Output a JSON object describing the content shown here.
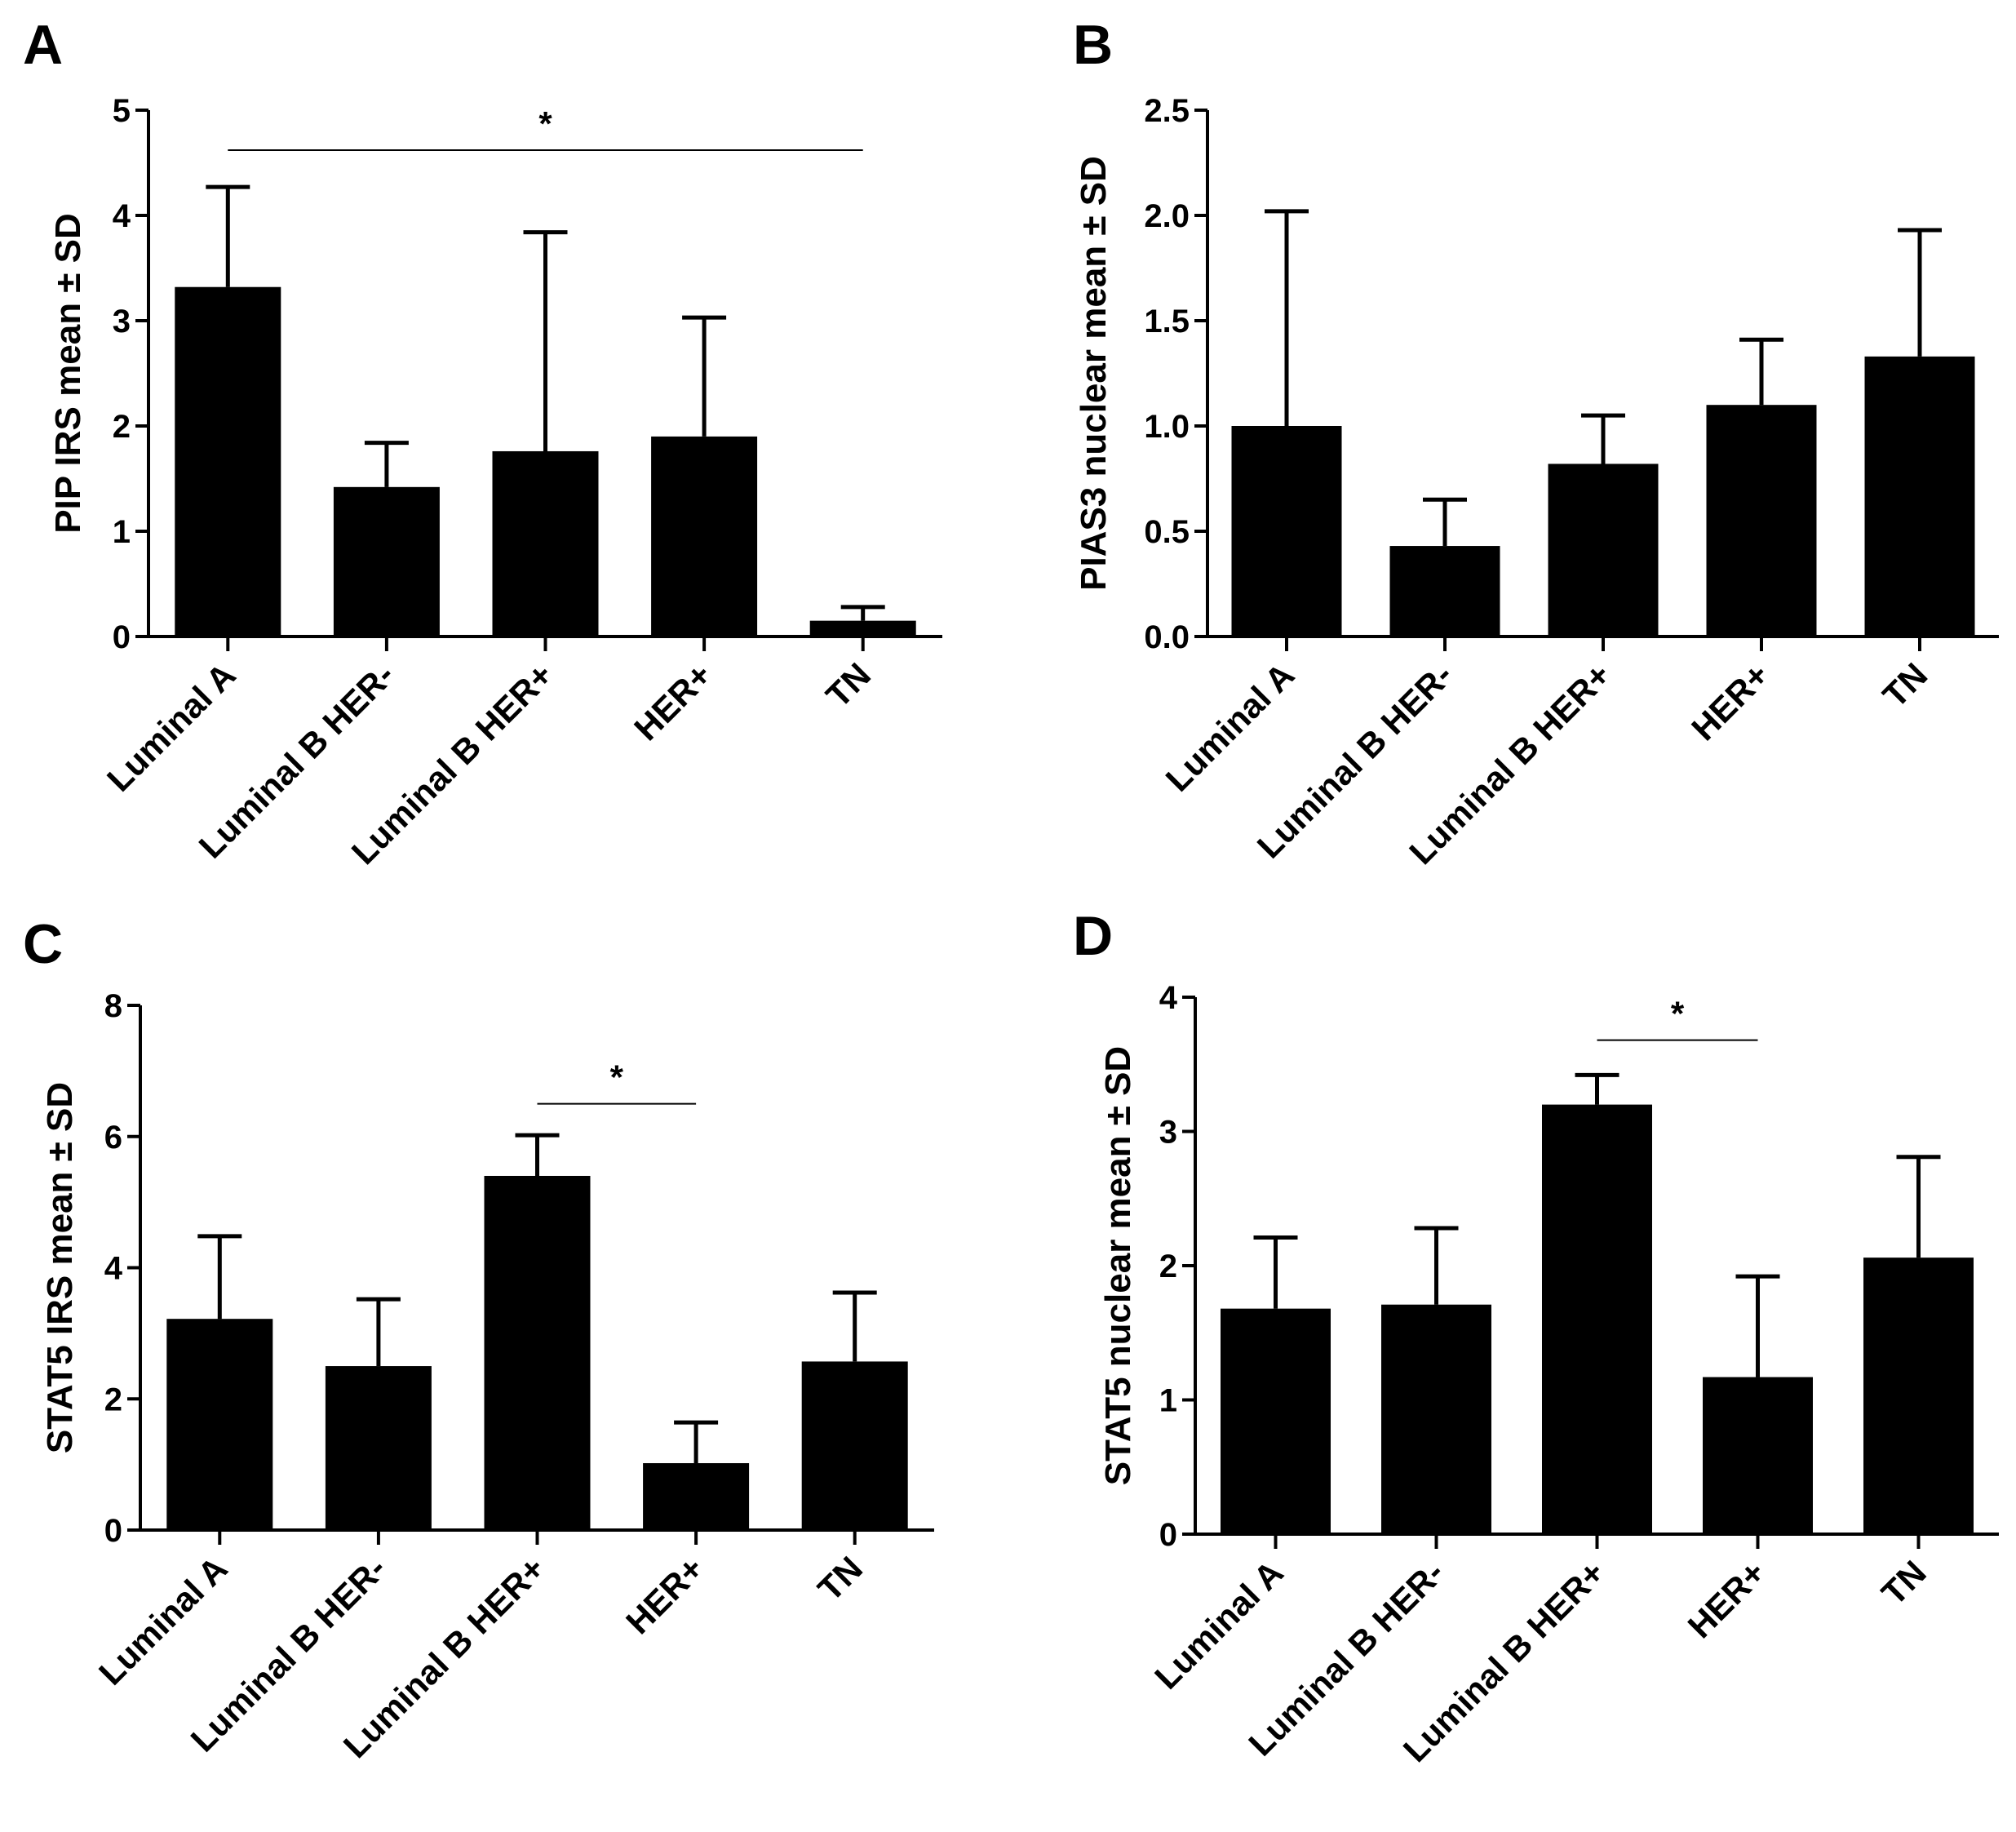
{
  "chart_data": [
    {
      "type": "bar",
      "panel": "A",
      "ylabel": "PIP IRS mean ± SD",
      "categories": [
        "Luminal A",
        "Luminal B HER-",
        "Luminal B HER+",
        "HER+",
        "TN"
      ],
      "values": [
        3.32,
        1.42,
        1.76,
        1.9,
        0.15
      ],
      "errors": [
        0.95,
        0.42,
        2.08,
        1.13,
        0.13
      ],
      "ylim": [
        0,
        5
      ],
      "yticks": [
        0,
        1,
        2,
        3,
        4,
        5
      ],
      "ytick_labels": [
        "0",
        "1",
        "2",
        "3",
        "4",
        "5"
      ],
      "significance": [
        {
          "from": 0,
          "to": 4,
          "label": "*",
          "y": 4.62
        }
      ]
    },
    {
      "type": "bar",
      "panel": "B",
      "ylabel": "PIAS3 nuclear mean ± SD",
      "categories": [
        "Luminal A",
        "Luminal B HER-",
        "Luminal B HER+",
        "HER+",
        "TN"
      ],
      "values": [
        1.0,
        0.43,
        0.82,
        1.1,
        1.33
      ],
      "errors": [
        1.02,
        0.22,
        0.23,
        0.31,
        0.6
      ],
      "ylim": [
        0,
        2.5
      ],
      "yticks": [
        0,
        0.5,
        1,
        1.5,
        2,
        2.5
      ],
      "ytick_labels": [
        "0.0",
        "0.5",
        "1.0",
        "1.5",
        "2.0",
        "2.5"
      ],
      "significance": []
    },
    {
      "type": "bar",
      "panel": "C",
      "ylabel": "STAT5 IRS mean ± SD",
      "categories": [
        "Luminal A",
        "Luminal B HER-",
        "Luminal B HER+",
        "HER+",
        "TN"
      ],
      "values": [
        3.22,
        2.5,
        5.4,
        1.02,
        2.57
      ],
      "errors": [
        1.26,
        1.02,
        0.62,
        0.62,
        1.05
      ],
      "ylim": [
        0,
        8
      ],
      "yticks": [
        0,
        2,
        4,
        6,
        8
      ],
      "ytick_labels": [
        "0",
        "2",
        "4",
        "6",
        "8"
      ],
      "significance": [
        {
          "from": 2,
          "to": 3,
          "label": "*",
          "y": 6.5
        }
      ]
    },
    {
      "type": "bar",
      "panel": "D",
      "ylabel": "STAT5 nuclear mean ± SD",
      "categories": [
        "Luminal A",
        "Luminal B HER-",
        "Luminal B HER+",
        "HER+",
        "TN"
      ],
      "values": [
        1.68,
        1.71,
        3.2,
        1.17,
        2.06
      ],
      "errors": [
        0.53,
        0.57,
        0.22,
        0.75,
        0.75
      ],
      "ylim": [
        0,
        4
      ],
      "yticks": [
        0,
        1,
        2,
        3,
        4
      ],
      "ytick_labels": [
        "0",
        "1",
        "2",
        "3",
        "4"
      ],
      "significance": [
        {
          "from": 2,
          "to": 3,
          "label": "*",
          "y": 3.68
        }
      ]
    }
  ]
}
